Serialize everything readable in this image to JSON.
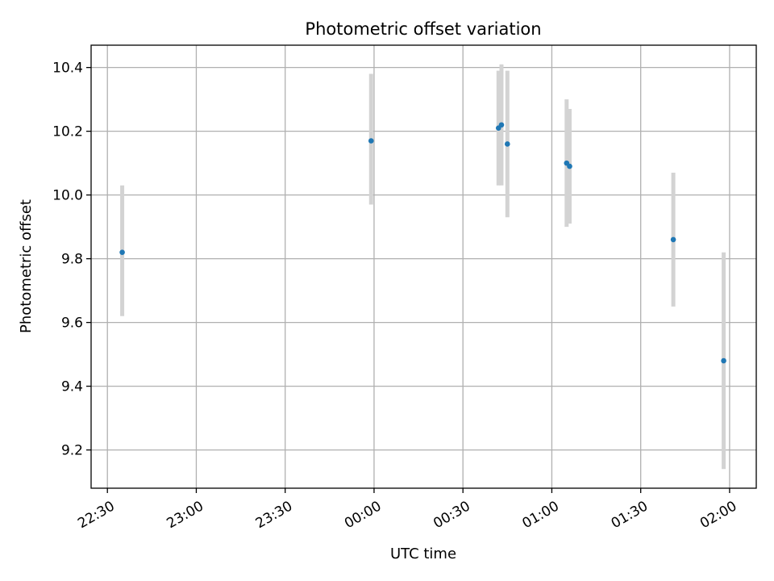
{
  "chart_data": {
    "type": "scatter",
    "title": "Photometric offset variation",
    "xlabel": "UTC time",
    "ylabel": "Photometric offset",
    "x_ticks": [
      "22:30",
      "23:00",
      "23:30",
      "00:00",
      "00:30",
      "01:00",
      "01:30",
      "02:00"
    ],
    "y_ticks": [
      "9.2",
      "9.4",
      "9.6",
      "9.8",
      "10.0",
      "10.2",
      "10.4"
    ],
    "xlim": [
      "22:24.5",
      "02:09"
    ],
    "ylim": [
      9.08,
      10.47
    ],
    "grid": true,
    "colors": {
      "points": "#1f77b4",
      "errorbars": "#d3d3d3",
      "grid": "#b0b0b0"
    },
    "points": [
      {
        "time": "22:35",
        "y": 9.82,
        "ylow": 9.62,
        "yhigh": 10.03
      },
      {
        "time": "23:59",
        "y": 10.17,
        "ylow": 9.97,
        "yhigh": 10.38
      },
      {
        "time": "00:42",
        "y": 10.21,
        "ylow": 10.03,
        "yhigh": 10.39
      },
      {
        "time": "00:43",
        "y": 10.22,
        "ylow": 10.03,
        "yhigh": 10.41
      },
      {
        "time": "00:45",
        "y": 10.16,
        "ylow": 9.93,
        "yhigh": 10.39
      },
      {
        "time": "01:05",
        "y": 10.1,
        "ylow": 9.9,
        "yhigh": 10.3
      },
      {
        "time": "01:06",
        "y": 10.09,
        "ylow": 9.91,
        "yhigh": 10.27
      },
      {
        "time": "01:41",
        "y": 9.86,
        "ylow": 9.65,
        "yhigh": 10.07
      },
      {
        "time": "01:58",
        "y": 9.48,
        "ylow": 9.14,
        "yhigh": 9.82
      }
    ]
  }
}
